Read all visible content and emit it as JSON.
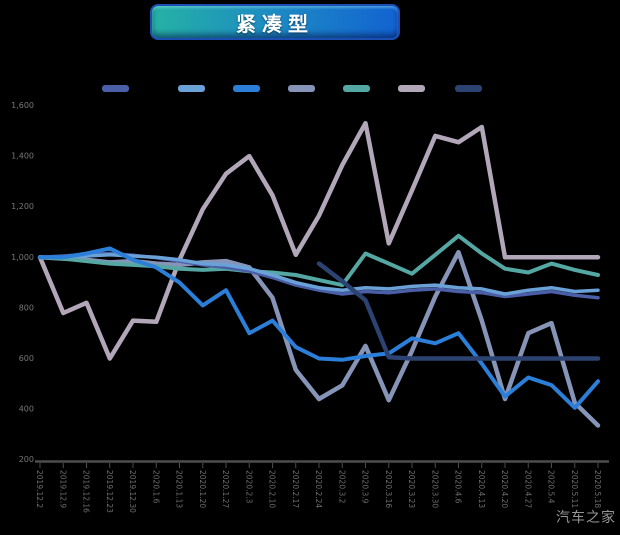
{
  "page": {
    "title_badge": "紧凑型",
    "watermark": "汽车之家"
  },
  "legend": {
    "items": [
      {
        "icon": "legend-dash-icon",
        "color": "#4a5fa8"
      },
      {
        "icon": "legend-dash-icon",
        "color": "#6aa2d8"
      },
      {
        "icon": "legend-dash-icon",
        "color": "#2b7fd9"
      },
      {
        "icon": "legend-dash-icon",
        "color": "#8694b8"
      },
      {
        "icon": "legend-dash-icon",
        "color": "#54a7a2"
      },
      {
        "icon": "legend-dash-icon",
        "color": "#b2a6b9"
      },
      {
        "icon": "legend-dash-icon",
        "color": "#2c4270"
      }
    ]
  },
  "chart_data": {
    "type": "line",
    "title": "紧凑型",
    "background": "#000000",
    "grid": false,
    "legend_position": "top",
    "y_tick_labels": [
      "1,600",
      "1,400",
      "1,200",
      "1,000",
      "800",
      "600",
      "400",
      "200"
    ],
    "y_tick_values": [
      1600,
      1400,
      1200,
      1000,
      800,
      600,
      400,
      200
    ],
    "ylim": [
      150,
      1700
    ],
    "x_labels": [
      "2019.12.2",
      "2019.12.9",
      "2019.12.16",
      "2019.12.23",
      "2019.12.30",
      "2020.1.6",
      "2020.1.13",
      "2020.1.20",
      "2020.1.27",
      "2020.2.3",
      "2020.2.10",
      "2020.2.17",
      "2020.2.24",
      "2020.3.2",
      "2020.3.9",
      "2020.3.16",
      "2020.3.23",
      "2020.3.30",
      "2020.4.6",
      "2020.4.13",
      "2020.4.20",
      "2020.4.27",
      "2020.5.4",
      "2020.5.11",
      "2020.5.18"
    ],
    "series": [
      {
        "id": "mauve-line",
        "color": "#b2a6b9",
        "width": 4.5,
        "values": [
          1000,
          780,
          820,
          600,
          750,
          745,
          990,
          1190,
          1330,
          1400,
          1245,
          1010,
          1165,
          1365,
          1530,
          1055,
          1265,
          1480,
          1455,
          1515,
          1000,
          1000,
          1000,
          1000,
          1000
        ]
      },
      {
        "id": "slate-line",
        "color": "#8694b8",
        "width": 4.5,
        "values": [
          1000,
          995,
          990,
          980,
          985,
          975,
          970,
          980,
          985,
          960,
          840,
          555,
          440,
          494,
          650,
          435,
          630,
          845,
          1020,
          750,
          440,
          700,
          740,
          425,
          335
        ]
      },
      {
        "id": "teal-line",
        "color": "#54a7a2",
        "width": 4,
        "values": [
          1000,
          995,
          985,
          975,
          970,
          965,
          955,
          950,
          955,
          945,
          940,
          930,
          910,
          890,
          1015,
          975,
          935,
          1010,
          1085,
          1015,
          955,
          940,
          975,
          950,
          930
        ]
      },
      {
        "id": "indigo-line",
        "color": "#4a5fa8",
        "width": 3.5,
        "values": [
          1000,
          1005,
          1012,
          1015,
          1008,
          998,
          985,
          970,
          960,
          945,
          920,
          890,
          870,
          855,
          865,
          860,
          870,
          875,
          865,
          860,
          845,
          855,
          865,
          850,
          840
        ]
      },
      {
        "id": "light-blue-line",
        "color": "#6aa2d8",
        "width": 3.5,
        "values": [
          1000,
          1000,
          1005,
          1010,
          1005,
          1000,
          990,
          975,
          970,
          955,
          930,
          900,
          880,
          870,
          880,
          875,
          885,
          890,
          880,
          875,
          855,
          870,
          880,
          865,
          870
        ]
      },
      {
        "id": "bright-blue-line",
        "color": "#2b7fd9",
        "width": 4,
        "values": [
          1000,
          1000,
          1015,
          1035,
          990,
          960,
          900,
          810,
          870,
          700,
          750,
          645,
          600,
          595,
          610,
          620,
          680,
          660,
          700,
          580,
          450,
          525,
          495,
          405,
          510
        ]
      },
      {
        "id": "navy-line",
        "color": "#2c4270",
        "width": 4.5,
        "values": [
          null,
          null,
          null,
          null,
          null,
          null,
          null,
          null,
          null,
          null,
          null,
          null,
          975,
          905,
          830,
          605,
          600,
          600,
          600,
          600,
          600,
          600,
          600,
          600,
          600
        ]
      }
    ]
  }
}
